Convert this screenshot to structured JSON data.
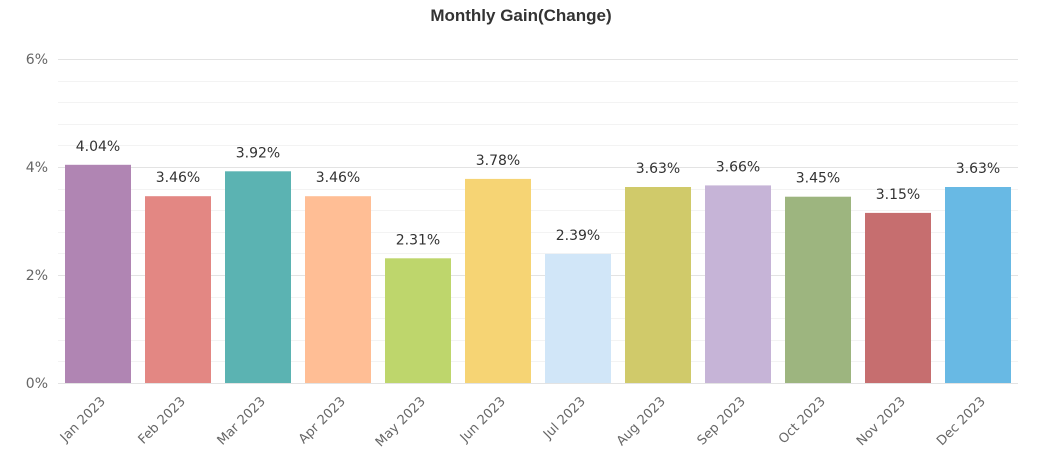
{
  "chart_data": {
    "type": "bar",
    "title": "Monthly Gain(Change)",
    "categories": [
      "Jan 2023",
      "Feb 2023",
      "Mar 2023",
      "Apr 2023",
      "May 2023",
      "Jun 2023",
      "Jul 2023",
      "Aug 2023",
      "Sep 2023",
      "Oct 2023",
      "Nov 2023",
      "Dec 2023"
    ],
    "values": [
      4.04,
      3.46,
      3.92,
      3.46,
      2.31,
      3.78,
      2.39,
      3.63,
      3.66,
      3.45,
      3.15,
      3.63
    ],
    "data_labels": [
      "4.04%",
      "3.46%",
      "3.92%",
      "3.46%",
      "2.31%",
      "3.78%",
      "2.39%",
      "3.63%",
      "3.66%",
      "3.45%",
      "3.15%",
      "3.63%"
    ],
    "bar_colors": [
      "#b085b3",
      "#e38783",
      "#5bb3b2",
      "#ffbe95",
      "#bed66c",
      "#f6d474",
      "#d1e6f8",
      "#d0ca6a",
      "#c6b4d7",
      "#9db57f",
      "#c66e6f",
      "#68b9e4"
    ],
    "yticks": [
      0,
      2,
      4,
      6
    ],
    "ytick_labels": [
      "0%",
      "2%",
      "4%",
      "6%"
    ],
    "ylim": [
      0,
      6
    ],
    "xlabel": "",
    "ylabel": "",
    "grid": true,
    "legend": false
  }
}
